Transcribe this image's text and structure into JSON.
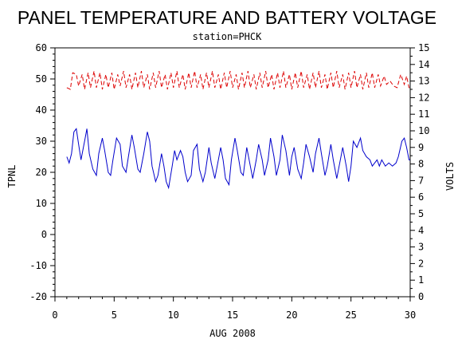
{
  "chart_data": {
    "type": "line",
    "title": "PANEL TEMPERATURE AND BATTERY VOLTAGE",
    "subtitle": "station=PHCK",
    "xlabel": "AUG 2008",
    "ylabel_left": "TPNL",
    "ylabel_right": "VOLTS",
    "xlim": [
      0,
      30
    ],
    "ylim_left": [
      -20,
      60
    ],
    "ylim_right": [
      0,
      15
    ],
    "x_ticks": [
      0,
      5,
      10,
      15,
      20,
      25,
      30
    ],
    "y_left_ticks": [
      -20,
      -10,
      0,
      10,
      20,
      30,
      40,
      50,
      60
    ],
    "y_right_ticks": [
      0,
      1,
      2,
      3,
      4,
      5,
      6,
      7,
      8,
      9,
      10,
      11,
      12,
      13,
      14,
      15
    ],
    "grid": false,
    "legend": "none",
    "series": [
      {
        "axis": "left",
        "color": "#0000cc",
        "style": "solid",
        "points": [
          [
            1.0,
            25
          ],
          [
            1.2,
            23
          ],
          [
            1.4,
            26
          ],
          [
            1.6,
            33
          ],
          [
            1.8,
            34
          ],
          [
            2.0,
            29
          ],
          [
            2.2,
            24
          ],
          [
            2.5,
            30
          ],
          [
            2.7,
            34
          ],
          [
            2.9,
            26
          ],
          [
            3.2,
            21
          ],
          [
            3.5,
            19
          ],
          [
            3.7,
            26
          ],
          [
            4.0,
            31
          ],
          [
            4.2,
            27
          ],
          [
            4.5,
            20
          ],
          [
            4.7,
            19
          ],
          [
            4.9,
            24
          ],
          [
            5.2,
            31
          ],
          [
            5.5,
            29
          ],
          [
            5.7,
            22
          ],
          [
            6.0,
            20
          ],
          [
            6.2,
            25
          ],
          [
            6.5,
            32
          ],
          [
            6.7,
            28
          ],
          [
            7.0,
            21
          ],
          [
            7.2,
            20
          ],
          [
            7.5,
            26
          ],
          [
            7.8,
            33
          ],
          [
            8.0,
            30
          ],
          [
            8.2,
            22
          ],
          [
            8.5,
            17
          ],
          [
            8.7,
            19
          ],
          [
            9.0,
            26
          ],
          [
            9.2,
            22
          ],
          [
            9.4,
            17
          ],
          [
            9.6,
            15
          ],
          [
            9.9,
            22
          ],
          [
            10.1,
            27
          ],
          [
            10.3,
            24
          ],
          [
            10.6,
            27
          ],
          [
            10.8,
            25
          ],
          [
            11.0,
            20
          ],
          [
            11.2,
            17
          ],
          [
            11.5,
            19
          ],
          [
            11.7,
            27
          ],
          [
            12.0,
            29
          ],
          [
            12.2,
            21
          ],
          [
            12.5,
            17
          ],
          [
            12.7,
            20
          ],
          [
            13.0,
            28
          ],
          [
            13.2,
            23
          ],
          [
            13.5,
            18
          ],
          [
            13.7,
            22
          ],
          [
            14.0,
            28
          ],
          [
            14.2,
            24
          ],
          [
            14.4,
            18
          ],
          [
            14.7,
            16
          ],
          [
            14.9,
            24
          ],
          [
            15.2,
            31
          ],
          [
            15.4,
            27
          ],
          [
            15.7,
            20
          ],
          [
            15.9,
            19
          ],
          [
            16.2,
            28
          ],
          [
            16.5,
            22
          ],
          [
            16.7,
            18
          ],
          [
            17.0,
            24
          ],
          [
            17.2,
            29
          ],
          [
            17.5,
            24
          ],
          [
            17.7,
            19
          ],
          [
            18.0,
            24
          ],
          [
            18.2,
            31
          ],
          [
            18.5,
            25
          ],
          [
            18.7,
            19
          ],
          [
            19.0,
            24
          ],
          [
            19.2,
            32
          ],
          [
            19.5,
            27
          ],
          [
            19.8,
            19
          ],
          [
            20.0,
            25
          ],
          [
            20.2,
            28
          ],
          [
            20.5,
            21
          ],
          [
            20.8,
            18
          ],
          [
            21.0,
            23
          ],
          [
            21.2,
            29
          ],
          [
            21.5,
            25
          ],
          [
            21.8,
            20
          ],
          [
            22.0,
            26
          ],
          [
            22.3,
            31
          ],
          [
            22.5,
            26
          ],
          [
            22.8,
            19
          ],
          [
            23.0,
            22
          ],
          [
            23.3,
            29
          ],
          [
            23.5,
            24
          ],
          [
            23.8,
            18
          ],
          [
            24.0,
            22
          ],
          [
            24.3,
            28
          ],
          [
            24.6,
            22
          ],
          [
            24.8,
            17
          ],
          [
            25.0,
            22
          ],
          [
            25.2,
            30
          ],
          [
            25.5,
            28
          ],
          [
            25.8,
            31
          ],
          [
            26.0,
            27
          ],
          [
            26.3,
            25
          ],
          [
            26.6,
            24
          ],
          [
            26.8,
            22
          ],
          [
            27.0,
            23
          ],
          [
            27.2,
            24
          ],
          [
            27.4,
            22
          ],
          [
            27.6,
            24
          ],
          [
            27.9,
            22
          ],
          [
            28.2,
            23
          ],
          [
            28.5,
            22
          ],
          [
            28.8,
            23
          ],
          [
            29.0,
            25
          ],
          [
            29.3,
            30
          ],
          [
            29.5,
            31
          ],
          [
            29.7,
            28
          ],
          [
            29.9,
            24
          ],
          [
            30.0,
            24
          ]
        ]
      },
      {
        "axis": "right",
        "color": "#dd0000",
        "style": "dashed",
        "points": [
          [
            1.0,
            12.6
          ],
          [
            1.3,
            12.5
          ],
          [
            1.5,
            13.5
          ],
          [
            1.8,
            13.4
          ],
          [
            2.0,
            12.7
          ],
          [
            2.3,
            13.4
          ],
          [
            2.5,
            12.5
          ],
          [
            2.8,
            13.5
          ],
          [
            3.0,
            12.6
          ],
          [
            3.3,
            13.6
          ],
          [
            3.5,
            12.6
          ],
          [
            3.8,
            13.5
          ],
          [
            4.0,
            12.5
          ],
          [
            4.3,
            13.4
          ],
          [
            4.5,
            12.6
          ],
          [
            4.8,
            13.5
          ],
          [
            5.0,
            12.5
          ],
          [
            5.3,
            13.4
          ],
          [
            5.5,
            12.7
          ],
          [
            5.8,
            13.6
          ],
          [
            6.0,
            12.6
          ],
          [
            6.3,
            13.4
          ],
          [
            6.5,
            12.5
          ],
          [
            6.8,
            13.5
          ],
          [
            7.0,
            12.6
          ],
          [
            7.3,
            13.6
          ],
          [
            7.5,
            12.6
          ],
          [
            7.8,
            13.4
          ],
          [
            8.0,
            12.5
          ],
          [
            8.3,
            13.5
          ],
          [
            8.5,
            12.6
          ],
          [
            8.8,
            13.6
          ],
          [
            9.0,
            12.6
          ],
          [
            9.3,
            13.4
          ],
          [
            9.5,
            12.5
          ],
          [
            9.8,
            13.5
          ],
          [
            10.0,
            12.6
          ],
          [
            10.3,
            13.6
          ],
          [
            10.5,
            12.6
          ],
          [
            10.8,
            13.4
          ],
          [
            11.0,
            12.5
          ],
          [
            11.3,
            13.5
          ],
          [
            11.5,
            12.6
          ],
          [
            11.8,
            13.6
          ],
          [
            12.0,
            12.6
          ],
          [
            12.3,
            13.4
          ],
          [
            12.5,
            12.5
          ],
          [
            12.8,
            13.5
          ],
          [
            13.0,
            12.6
          ],
          [
            13.3,
            13.6
          ],
          [
            13.5,
            12.6
          ],
          [
            13.8,
            13.4
          ],
          [
            14.0,
            12.5
          ],
          [
            14.3,
            13.5
          ],
          [
            14.5,
            12.6
          ],
          [
            14.8,
            13.6
          ],
          [
            15.0,
            12.6
          ],
          [
            15.3,
            13.4
          ],
          [
            15.5,
            12.5
          ],
          [
            15.8,
            13.5
          ],
          [
            16.0,
            12.6
          ],
          [
            16.3,
            13.6
          ],
          [
            16.5,
            12.6
          ],
          [
            16.8,
            13.4
          ],
          [
            17.0,
            12.5
          ],
          [
            17.3,
            13.5
          ],
          [
            17.5,
            12.6
          ],
          [
            17.8,
            13.6
          ],
          [
            18.0,
            12.6
          ],
          [
            18.3,
            13.4
          ],
          [
            18.5,
            12.5
          ],
          [
            18.8,
            13.5
          ],
          [
            19.0,
            12.6
          ],
          [
            19.3,
            13.6
          ],
          [
            19.5,
            12.6
          ],
          [
            19.8,
            13.4
          ],
          [
            20.0,
            12.5
          ],
          [
            20.3,
            13.5
          ],
          [
            20.5,
            12.6
          ],
          [
            20.8,
            13.6
          ],
          [
            21.0,
            12.6
          ],
          [
            21.3,
            13.4
          ],
          [
            21.5,
            12.5
          ],
          [
            21.8,
            13.5
          ],
          [
            22.0,
            12.6
          ],
          [
            22.3,
            13.6
          ],
          [
            22.5,
            12.6
          ],
          [
            22.8,
            13.4
          ],
          [
            23.0,
            12.5
          ],
          [
            23.3,
            13.5
          ],
          [
            23.5,
            12.6
          ],
          [
            23.8,
            13.6
          ],
          [
            24.0,
            12.6
          ],
          [
            24.3,
            13.4
          ],
          [
            24.5,
            12.5
          ],
          [
            24.8,
            13.5
          ],
          [
            25.0,
            12.6
          ],
          [
            25.3,
            13.6
          ],
          [
            25.5,
            12.6
          ],
          [
            25.8,
            13.4
          ],
          [
            26.0,
            12.5
          ],
          [
            26.3,
            13.5
          ],
          [
            26.5,
            12.6
          ],
          [
            26.8,
            13.5
          ],
          [
            27.0,
            12.6
          ],
          [
            27.3,
            13.4
          ],
          [
            27.5,
            12.7
          ],
          [
            27.8,
            13.3
          ],
          [
            28.0,
            12.8
          ],
          [
            28.3,
            13.0
          ],
          [
            28.6,
            12.7
          ],
          [
            28.9,
            12.6
          ],
          [
            29.2,
            13.4
          ],
          [
            29.5,
            12.8
          ],
          [
            29.7,
            13.3
          ],
          [
            29.9,
            12.6
          ],
          [
            30.0,
            12.6
          ]
        ]
      }
    ]
  }
}
